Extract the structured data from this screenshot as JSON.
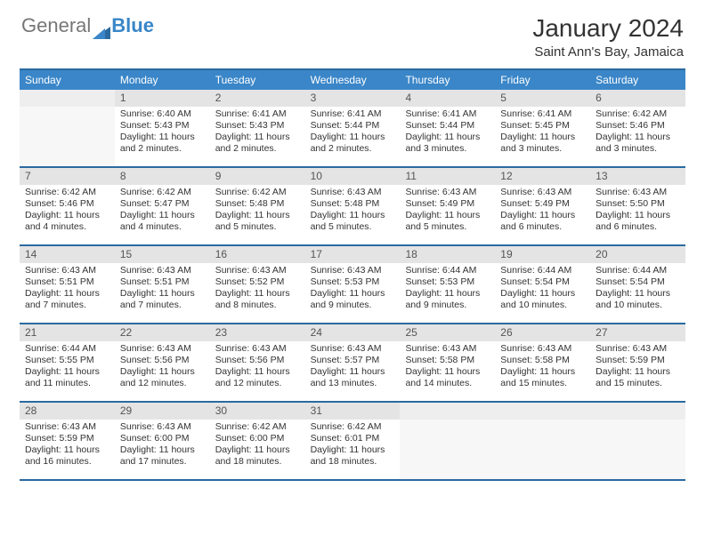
{
  "logo": {
    "part1": "General",
    "part2": "Blue"
  },
  "title": "January 2024",
  "location": "Saint Ann's Bay, Jamaica",
  "dayNames": [
    "Sunday",
    "Monday",
    "Tuesday",
    "Wednesday",
    "Thursday",
    "Friday",
    "Saturday"
  ],
  "colors": {
    "headerBg": "#3a86c8",
    "headerText": "#ffffff",
    "ruleLine": "#2a6aa0",
    "dayNumBg": "#e4e4e4",
    "emptyBg": "#f7f7f7",
    "text": "#333333"
  },
  "weeks": [
    [
      {
        "empty": true
      },
      {
        "num": "1",
        "sunrise": "Sunrise: 6:40 AM",
        "sunset": "Sunset: 5:43 PM",
        "daylight": "Daylight: 11 hours and 2 minutes."
      },
      {
        "num": "2",
        "sunrise": "Sunrise: 6:41 AM",
        "sunset": "Sunset: 5:43 PM",
        "daylight": "Daylight: 11 hours and 2 minutes."
      },
      {
        "num": "3",
        "sunrise": "Sunrise: 6:41 AM",
        "sunset": "Sunset: 5:44 PM",
        "daylight": "Daylight: 11 hours and 2 minutes."
      },
      {
        "num": "4",
        "sunrise": "Sunrise: 6:41 AM",
        "sunset": "Sunset: 5:44 PM",
        "daylight": "Daylight: 11 hours and 3 minutes."
      },
      {
        "num": "5",
        "sunrise": "Sunrise: 6:41 AM",
        "sunset": "Sunset: 5:45 PM",
        "daylight": "Daylight: 11 hours and 3 minutes."
      },
      {
        "num": "6",
        "sunrise": "Sunrise: 6:42 AM",
        "sunset": "Sunset: 5:46 PM",
        "daylight": "Daylight: 11 hours and 3 minutes."
      }
    ],
    [
      {
        "num": "7",
        "sunrise": "Sunrise: 6:42 AM",
        "sunset": "Sunset: 5:46 PM",
        "daylight": "Daylight: 11 hours and 4 minutes."
      },
      {
        "num": "8",
        "sunrise": "Sunrise: 6:42 AM",
        "sunset": "Sunset: 5:47 PM",
        "daylight": "Daylight: 11 hours and 4 minutes."
      },
      {
        "num": "9",
        "sunrise": "Sunrise: 6:42 AM",
        "sunset": "Sunset: 5:48 PM",
        "daylight": "Daylight: 11 hours and 5 minutes."
      },
      {
        "num": "10",
        "sunrise": "Sunrise: 6:43 AM",
        "sunset": "Sunset: 5:48 PM",
        "daylight": "Daylight: 11 hours and 5 minutes."
      },
      {
        "num": "11",
        "sunrise": "Sunrise: 6:43 AM",
        "sunset": "Sunset: 5:49 PM",
        "daylight": "Daylight: 11 hours and 5 minutes."
      },
      {
        "num": "12",
        "sunrise": "Sunrise: 6:43 AM",
        "sunset": "Sunset: 5:49 PM",
        "daylight": "Daylight: 11 hours and 6 minutes."
      },
      {
        "num": "13",
        "sunrise": "Sunrise: 6:43 AM",
        "sunset": "Sunset: 5:50 PM",
        "daylight": "Daylight: 11 hours and 6 minutes."
      }
    ],
    [
      {
        "num": "14",
        "sunrise": "Sunrise: 6:43 AM",
        "sunset": "Sunset: 5:51 PM",
        "daylight": "Daylight: 11 hours and 7 minutes."
      },
      {
        "num": "15",
        "sunrise": "Sunrise: 6:43 AM",
        "sunset": "Sunset: 5:51 PM",
        "daylight": "Daylight: 11 hours and 7 minutes."
      },
      {
        "num": "16",
        "sunrise": "Sunrise: 6:43 AM",
        "sunset": "Sunset: 5:52 PM",
        "daylight": "Daylight: 11 hours and 8 minutes."
      },
      {
        "num": "17",
        "sunrise": "Sunrise: 6:43 AM",
        "sunset": "Sunset: 5:53 PM",
        "daylight": "Daylight: 11 hours and 9 minutes."
      },
      {
        "num": "18",
        "sunrise": "Sunrise: 6:44 AM",
        "sunset": "Sunset: 5:53 PM",
        "daylight": "Daylight: 11 hours and 9 minutes."
      },
      {
        "num": "19",
        "sunrise": "Sunrise: 6:44 AM",
        "sunset": "Sunset: 5:54 PM",
        "daylight": "Daylight: 11 hours and 10 minutes."
      },
      {
        "num": "20",
        "sunrise": "Sunrise: 6:44 AM",
        "sunset": "Sunset: 5:54 PM",
        "daylight": "Daylight: 11 hours and 10 minutes."
      }
    ],
    [
      {
        "num": "21",
        "sunrise": "Sunrise: 6:44 AM",
        "sunset": "Sunset: 5:55 PM",
        "daylight": "Daylight: 11 hours and 11 minutes."
      },
      {
        "num": "22",
        "sunrise": "Sunrise: 6:43 AM",
        "sunset": "Sunset: 5:56 PM",
        "daylight": "Daylight: 11 hours and 12 minutes."
      },
      {
        "num": "23",
        "sunrise": "Sunrise: 6:43 AM",
        "sunset": "Sunset: 5:56 PM",
        "daylight": "Daylight: 11 hours and 12 minutes."
      },
      {
        "num": "24",
        "sunrise": "Sunrise: 6:43 AM",
        "sunset": "Sunset: 5:57 PM",
        "daylight": "Daylight: 11 hours and 13 minutes."
      },
      {
        "num": "25",
        "sunrise": "Sunrise: 6:43 AM",
        "sunset": "Sunset: 5:58 PM",
        "daylight": "Daylight: 11 hours and 14 minutes."
      },
      {
        "num": "26",
        "sunrise": "Sunrise: 6:43 AM",
        "sunset": "Sunset: 5:58 PM",
        "daylight": "Daylight: 11 hours and 15 minutes."
      },
      {
        "num": "27",
        "sunrise": "Sunrise: 6:43 AM",
        "sunset": "Sunset: 5:59 PM",
        "daylight": "Daylight: 11 hours and 15 minutes."
      }
    ],
    [
      {
        "num": "28",
        "sunrise": "Sunrise: 6:43 AM",
        "sunset": "Sunset: 5:59 PM",
        "daylight": "Daylight: 11 hours and 16 minutes."
      },
      {
        "num": "29",
        "sunrise": "Sunrise: 6:43 AM",
        "sunset": "Sunset: 6:00 PM",
        "daylight": "Daylight: 11 hours and 17 minutes."
      },
      {
        "num": "30",
        "sunrise": "Sunrise: 6:42 AM",
        "sunset": "Sunset: 6:00 PM",
        "daylight": "Daylight: 11 hours and 18 minutes."
      },
      {
        "num": "31",
        "sunrise": "Sunrise: 6:42 AM",
        "sunset": "Sunset: 6:01 PM",
        "daylight": "Daylight: 11 hours and 18 minutes."
      },
      {
        "empty": true
      },
      {
        "empty": true
      },
      {
        "empty": true
      }
    ]
  ]
}
